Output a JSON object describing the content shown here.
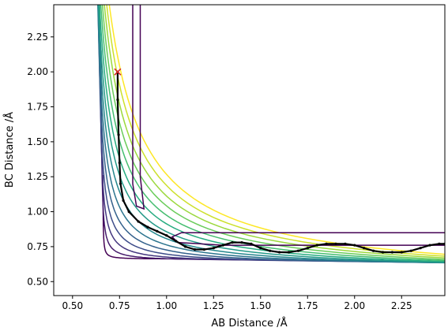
{
  "chart_data": {
    "type": "contour",
    "title": "",
    "xlabel": "AB Distance /Å",
    "ylabel": "BC Distance /Å",
    "xlim": [
      0.4,
      2.48
    ],
    "ylim": [
      0.4,
      2.48
    ],
    "xticks": [
      "0.50",
      "0.75",
      "1.00",
      "1.25",
      "1.50",
      "1.75",
      "2.00",
      "2.25"
    ],
    "yticks": [
      "0.50",
      "0.75",
      "1.00",
      "1.25",
      "1.50",
      "1.75",
      "2.00",
      "2.25"
    ],
    "grid": false,
    "legend": "none",
    "colormap": [
      "#440154",
      "#472d7b",
      "#3b528b",
      "#2c728e",
      "#21918c",
      "#28ae80",
      "#5ec962",
      "#addc30",
      "#fde725"
    ],
    "contour_levels": [
      {
        "value": 1,
        "inf": 0.85
      },
      {
        "value": 2,
        "inf": 0.97
      },
      {
        "value": 3,
        "inf": 1.06
      },
      {
        "value": 4,
        "inf": 1.14
      },
      {
        "value": 5,
        "inf": 1.21
      },
      {
        "value": 6,
        "inf": 1.28
      },
      {
        "value": 7,
        "inf": 1.34
      },
      {
        "value": 8,
        "inf": 1.4
      },
      {
        "value": 9,
        "inf": 1.46
      },
      {
        "value": 10,
        "inf": 1.52
      },
      {
        "value": 11,
        "inf": 1.58
      },
      {
        "value": 12,
        "inf": 1.64
      },
      {
        "value": 13,
        "inf": 1.71
      },
      {
        "value": 14,
        "inf": 1.78
      }
    ],
    "start_point": {
      "x": 0.74,
      "y": 2.0,
      "marker": "x",
      "color": "#d62728"
    },
    "trajectory": {
      "color": "#000000",
      "x": [
        0.74,
        0.74,
        0.745,
        0.75,
        0.755,
        0.77,
        0.8,
        0.85,
        0.9,
        0.95,
        1.0,
        1.05,
        1.1,
        1.15,
        1.2,
        1.25,
        1.3,
        1.35,
        1.4,
        1.45,
        1.5,
        1.55,
        1.6,
        1.65,
        1.7,
        1.75,
        1.8,
        1.85,
        1.9,
        1.95,
        2.0,
        2.05,
        2.1,
        2.15,
        2.2,
        2.25,
        2.3,
        2.35,
        2.4,
        2.45,
        2.48
      ],
      "y": [
        2.0,
        1.8,
        1.55,
        1.35,
        1.2,
        1.08,
        1.0,
        0.93,
        0.89,
        0.86,
        0.83,
        0.79,
        0.75,
        0.73,
        0.73,
        0.74,
        0.76,
        0.78,
        0.78,
        0.77,
        0.74,
        0.72,
        0.71,
        0.71,
        0.72,
        0.74,
        0.76,
        0.77,
        0.77,
        0.77,
        0.76,
        0.74,
        0.72,
        0.71,
        0.71,
        0.71,
        0.72,
        0.74,
        0.76,
        0.77,
        0.77
      ]
    }
  }
}
